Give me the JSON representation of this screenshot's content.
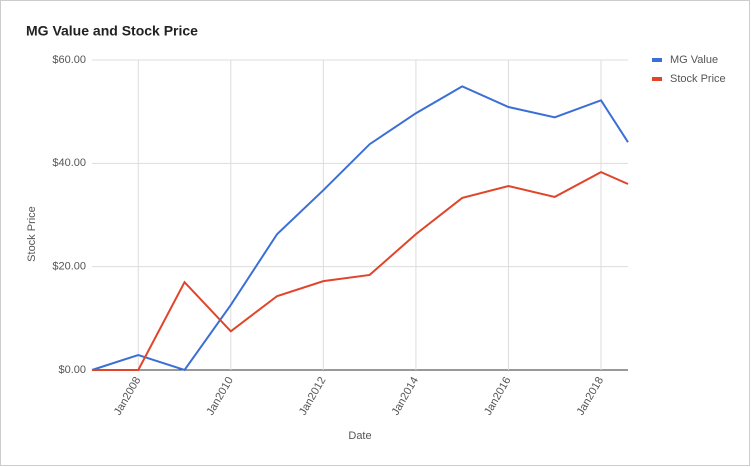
{
  "chart_data": {
    "type": "line",
    "title": "MG Value and Stock Price",
    "x_label": "Date",
    "y_label": "Stock Price",
    "x": [
      "2007-01",
      "2008-01",
      "2009-01",
      "2010-01",
      "2011-01",
      "2012-01",
      "2013-01",
      "2014-01",
      "2015-01",
      "2016-01",
      "2017-01",
      "2018-01",
      "2018-08"
    ],
    "series": [
      {
        "name": "MG Value",
        "color": "#3b6fd6",
        "values": [
          0,
          2.9,
          0,
          12.6,
          26.3,
          34.8,
          43.7,
          49.7,
          54.9,
          50.9,
          48.9,
          52.2,
          44.1
        ]
      },
      {
        "name": "Stock Price",
        "color": "#e0452a",
        "values": [
          0,
          0,
          17.0,
          7.5,
          14.3,
          17.2,
          18.4,
          26.3,
          33.3,
          35.6,
          33.5,
          38.3,
          36.0
        ]
      }
    ],
    "xlim": [
      "2007-01",
      "2018-08"
    ],
    "xticks": [
      {
        "value": "2008-01",
        "label": "Jan2008"
      },
      {
        "value": "2010-01",
        "label": "Jan2010"
      },
      {
        "value": "2012-01",
        "label": "Jan2012"
      },
      {
        "value": "2014-01",
        "label": "Jan2014"
      },
      {
        "value": "2016-01",
        "label": "Jan2016"
      },
      {
        "value": "2018-01",
        "label": "Jan2018"
      }
    ],
    "ylim": [
      0,
      60
    ],
    "yticks": [
      {
        "value": 0,
        "label": "$0.00"
      },
      {
        "value": 20,
        "label": "$20.00"
      },
      {
        "value": 40,
        "label": "$40.00"
      },
      {
        "value": 60,
        "label": "$60.00"
      }
    ],
    "grid": true,
    "legend": "right"
  }
}
